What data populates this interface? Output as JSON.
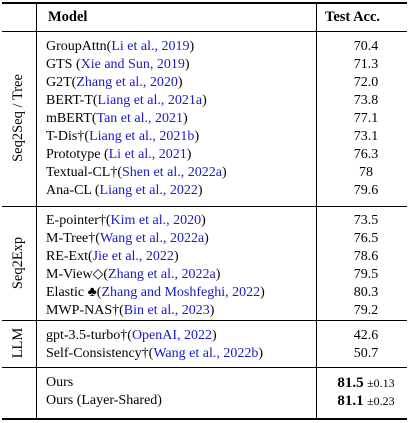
{
  "table": {
    "columns": [
      "Model",
      "Test Acc."
    ],
    "groups": [
      {
        "label": "Seq2Seq / Tree",
        "rows": [
          {
            "name": "GroupAttn",
            "cite": "Li et al., 2019",
            "acc": "70.4"
          },
          {
            "name": "GTS",
            "cite": "Xie and Sun, 2019",
            "acc": "71.3"
          },
          {
            "name": "G2T",
            "cite": "Zhang et al., 2020",
            "acc": "72.0"
          },
          {
            "name": "BERT-T",
            "cite": "Liang et al., 2021a",
            "acc": "73.8"
          },
          {
            "name": "mBERT",
            "cite": "Tan et al., 2021",
            "acc": "77.1"
          },
          {
            "name": "T-Dis†",
            "cite": "Liang et al., 2021b",
            "acc": "73.1"
          },
          {
            "name": "Prototype ",
            "cite": "Li et al., 2021",
            "acc": "76.3"
          },
          {
            "name": "Textual-CL†",
            "cite": "Shen et al., 2022a",
            "acc": "78"
          },
          {
            "name": "Ana-CL ",
            "cite": "Liang et al., 2022",
            "acc": "79.6"
          }
        ]
      },
      {
        "label": "Seq2Exp",
        "rows": [
          {
            "name": "E-pointer†",
            "cite": "Kim et al., 2020",
            "acc": "73.5"
          },
          {
            "name": "M-Tree†",
            "cite": "Wang et al., 2022a",
            "acc": "76.5"
          },
          {
            "name": "RE-Ext",
            "cite": "Jie et al., 2022",
            "acc": "78.6"
          },
          {
            "name": "M-View◇",
            "cite": "Zhang et al., 2022a",
            "acc": "79.5"
          },
          {
            "name": "Elastic ♣",
            "cite": "Zhang and Moshfeghi, 2022",
            "acc": "80.3"
          },
          {
            "name": "MWP-NAS†",
            "cite": "Bin et al., 2023",
            "acc": "79.2"
          }
        ]
      },
      {
        "label": "LLM",
        "rows": [
          {
            "name": "gpt-3.5-turbo†",
            "cite": "OpenAI, 2022",
            "acc": "42.6"
          },
          {
            "name": "Self-Consistency†",
            "cite": "Wang et al., 2022b",
            "acc": "50.7"
          }
        ]
      },
      {
        "label": "",
        "rows": [
          {
            "name": "Ours",
            "acc": "81.5",
            "pm": "±0.13"
          },
          {
            "name": "Ours (Layer-Shared)",
            "acc": "81.1",
            "pm": "±0.23"
          }
        ]
      }
    ]
  }
}
